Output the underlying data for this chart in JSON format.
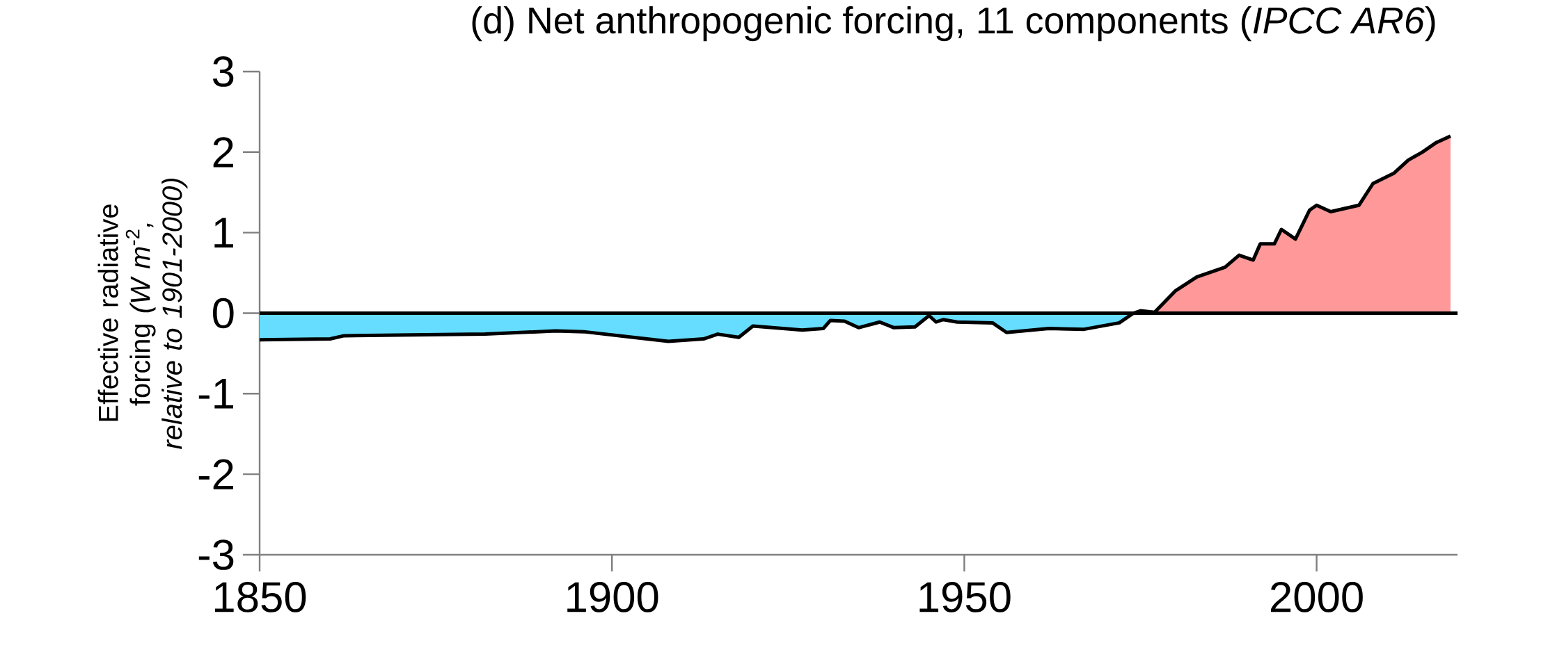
{
  "chart_data": {
    "type": "area",
    "title": "(d) Net anthropogenic forcing, 11 components (*IPCC AR6*)",
    "ylabel": "Effective radiative forcing *(W m*$^{-2}$*, relative to 1901-2000)*",
    "xlim": [
      1850,
      2020
    ],
    "xticks": [
      1850,
      1900,
      1950,
      2000
    ],
    "ylim": [
      -3,
      3
    ],
    "yticks": [
      -3,
      -2,
      -1,
      0,
      1,
      2,
      3
    ],
    "ref_lines": [
      {
        "axis": "y",
        "value": 0,
        "color": "#000000"
      }
    ],
    "series": [
      {
        "type": "area",
        "color": "#66ddff",
        "x": [
          1850,
          1860,
          1862,
          1882,
          1892,
          1896,
          1903,
          1908,
          1913,
          1915,
          1918,
          1920,
          1927,
          1930,
          1931,
          1933,
          1935,
          1938,
          1940,
          1943,
          1945,
          1946,
          1947,
          1949,
          1954,
          1956,
          1962,
          1967,
          1972,
          1974
        ],
        "values": [
          -0.33,
          -0.32,
          -0.28,
          -0.26,
          -0.22,
          -0.23,
          -0.3,
          -0.35,
          -0.32,
          -0.26,
          -0.3,
          -0.16,
          -0.21,
          -0.19,
          -0.09,
          -0.1,
          -0.18,
          -0.11,
          -0.18,
          -0.17,
          -0.03,
          -0.11,
          -0.08,
          -0.11,
          -0.12,
          -0.24,
          -0.19,
          -0.2,
          -0.12,
          0
        ]
      },
      {
        "type": "area",
        "color": "#ff9999",
        "x": [
          1974,
          1975,
          1977,
          1980,
          1983,
          1987,
          1989,
          1991,
          1992,
          1994,
          1995,
          1997,
          1999,
          2000,
          2002,
          2006,
          2008,
          2011,
          2013,
          2015,
          2017,
          2019
        ],
        "values": [
          0,
          0.03,
          0.01,
          0.28,
          0.45,
          0.57,
          0.72,
          0.66,
          0.86,
          0.86,
          1.04,
          0.92,
          1.28,
          1.34,
          1.26,
          1.34,
          1.61,
          1.74,
          1.9,
          2.0,
          2.12,
          2.2
        ]
      },
      {
        "type": "line",
        "color": "#000000",
        "x": [
          1850,
          1860,
          1862,
          1882,
          1892,
          1896,
          1903,
          1908,
          1913,
          1915,
          1918,
          1920,
          1927,
          1930,
          1931,
          1933,
          1935,
          1938,
          1940,
          1943,
          1945,
          1946,
          1947,
          1949,
          1954,
          1956,
          1962,
          1967,
          1972,
          1974,
          1975,
          1977,
          1980,
          1983,
          1987,
          1989,
          1991,
          1992,
          1994,
          1995,
          1997,
          1999,
          2000,
          2002,
          2006,
          2008,
          2011,
          2013,
          2015,
          2017,
          2019
        ],
        "values": [
          -0.33,
          -0.32,
          -0.28,
          -0.26,
          -0.22,
          -0.23,
          -0.3,
          -0.35,
          -0.32,
          -0.26,
          -0.3,
          -0.16,
          -0.21,
          -0.19,
          -0.09,
          -0.1,
          -0.18,
          -0.11,
          -0.18,
          -0.17,
          -0.03,
          -0.11,
          -0.08,
          -0.11,
          -0.12,
          -0.24,
          -0.19,
          -0.2,
          -0.12,
          0,
          0.03,
          0.01,
          0.28,
          0.45,
          0.57,
          0.72,
          0.66,
          0.86,
          0.86,
          1.04,
          0.92,
          1.28,
          1.34,
          1.26,
          1.34,
          1.61,
          1.74,
          1.9,
          2.0,
          2.12,
          2.2
        ]
      }
    ]
  }
}
